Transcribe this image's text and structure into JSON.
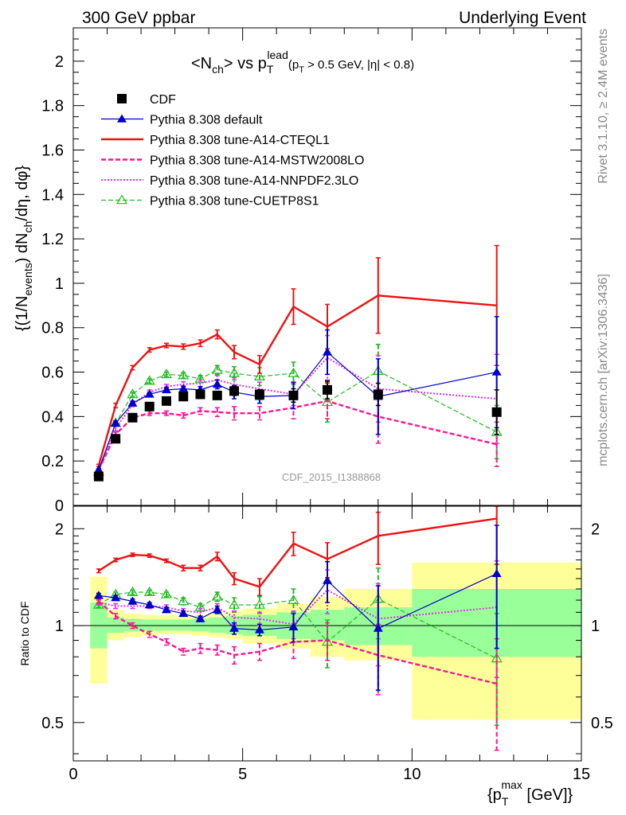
{
  "header": {
    "left": "300 GeV ppbar",
    "right": "Underlying Event"
  },
  "side_labels": {
    "rivet": "Rivet 3.1.10, ≥ 2.4M events",
    "mcplots": "mcplots.cern.ch [arXiv:1306.3436]"
  },
  "colors": {
    "cdf": "#000000",
    "default": "#0000cc",
    "cteql1": "#ee1111",
    "mstw": "#ff1493",
    "nnpdf": "#e62ee6",
    "cuetp8s1": "#22bb22",
    "band_inner": "#99ff99",
    "band_outer": "#ffff99"
  },
  "chart_data": [
    {
      "type": "line",
      "panel": "main",
      "title": "<N_ch> vs p_T^lead (p_T > 0.5 GeV, |η| < 0.8)",
      "ylabel": "{(1/N_events) dN_ch/dη, dφ}",
      "xlim": [
        0,
        15
      ],
      "ylim": [
        0,
        2.15
      ],
      "yticks": [
        0,
        0.2,
        0.4,
        0.6,
        0.8,
        1,
        1.2,
        1.4,
        1.6,
        1.8,
        2
      ],
      "watermark": "CDF_2015_I1388868",
      "legend_position": "top-left",
      "x": [
        0.75,
        1.25,
        1.75,
        2.25,
        2.75,
        3.25,
        3.75,
        4.25,
        4.75,
        5.5,
        6.5,
        7.5,
        9.0,
        12.5
      ],
      "series": [
        {
          "key": "cdf",
          "name": "CDF",
          "style": "marker-square",
          "values": [
            0.13,
            0.3,
            0.395,
            0.445,
            0.47,
            0.49,
            0.5,
            0.495,
            0.515,
            0.5,
            0.495,
            0.52,
            0.5,
            0.42
          ],
          "errors": [
            0.01,
            0.01,
            0.01,
            0.01,
            0.01,
            0.01,
            0.01,
            0.015,
            0.02,
            0.02,
            0.03,
            0.04,
            0.05,
            0.1
          ]
        },
        {
          "key": "default",
          "name": "Pythia 8.308 default",
          "style": "solid-triangle",
          "values": [
            0.16,
            0.37,
            0.46,
            0.5,
            0.52,
            0.525,
            0.52,
            0.545,
            0.51,
            0.49,
            0.495,
            0.69,
            0.49,
            0.6
          ],
          "errors": [
            0.005,
            0.01,
            0.01,
            0.01,
            0.01,
            0.012,
            0.015,
            0.02,
            0.03,
            0.03,
            0.06,
            0.1,
            0.17,
            0.25
          ]
        },
        {
          "key": "cteql1",
          "name": "Pythia 8.308 tune-A14-CTEQL1",
          "style": "solid",
          "values": [
            0.18,
            0.45,
            0.62,
            0.7,
            0.72,
            0.715,
            0.73,
            0.77,
            0.69,
            0.635,
            0.895,
            0.805,
            0.945,
            0.9
          ],
          "errors": [
            0.005,
            0.01,
            0.01,
            0.01,
            0.01,
            0.012,
            0.015,
            0.02,
            0.03,
            0.04,
            0.08,
            0.1,
            0.17,
            0.27
          ]
        },
        {
          "key": "mstw",
          "name": "Pythia 8.308 tune-A14-MSTW2008LO",
          "style": "dashed",
          "values": [
            0.16,
            0.32,
            0.395,
            0.415,
            0.415,
            0.405,
            0.425,
            0.42,
            0.415,
            0.415,
            0.44,
            0.47,
            0.4,
            0.275
          ],
          "errors": [
            0.005,
            0.01,
            0.01,
            0.01,
            0.01,
            0.012,
            0.015,
            0.02,
            0.03,
            0.03,
            0.05,
            0.08,
            0.12,
            0.1
          ]
        },
        {
          "key": "nnpdf",
          "name": "Pythia 8.308 tune-A14-NNPDF2.3LO",
          "style": "dotted",
          "values": [
            0.155,
            0.345,
            0.455,
            0.51,
            0.535,
            0.545,
            0.55,
            0.565,
            0.545,
            0.525,
            0.5,
            0.665,
            0.525,
            0.48
          ],
          "errors": [
            0.005,
            0.01,
            0.01,
            0.01,
            0.01,
            0.012,
            0.015,
            0.02,
            0.03,
            0.03,
            0.05,
            0.1,
            0.15,
            0.2
          ]
        },
        {
          "key": "cuetp8s1",
          "name": "Pythia 8.308 tune-CUETP8S1",
          "style": "dashed-triangle-open",
          "values": [
            0.15,
            0.37,
            0.5,
            0.56,
            0.59,
            0.585,
            0.57,
            0.61,
            0.595,
            0.58,
            0.595,
            0.465,
            0.605,
            0.33
          ],
          "errors": [
            0.005,
            0.01,
            0.01,
            0.01,
            0.01,
            0.012,
            0.015,
            0.02,
            0.03,
            0.04,
            0.05,
            0.09,
            0.12,
            0.12
          ]
        }
      ]
    },
    {
      "type": "line",
      "panel": "ratio",
      "ylabel": "Ratio to CDF",
      "xlabel": "{p_T^max [GeV]}",
      "xlim": [
        0,
        15
      ],
      "ylim": [
        0.38,
        2.35
      ],
      "log_y": true,
      "yticks": [
        0.5,
        1,
        2
      ],
      "xticks": [
        0,
        5,
        10,
        15
      ],
      "reference": 1,
      "bands": [
        {
          "x0": 0.5,
          "x1": 1.0,
          "inner": [
            0.85,
            1.18
          ],
          "outer": [
            0.66,
            1.42
          ]
        },
        {
          "x0": 1.0,
          "x1": 1.5,
          "inner": [
            0.95,
            1.06
          ],
          "outer": [
            0.9,
            1.12
          ]
        },
        {
          "x0": 1.5,
          "x1": 2.0,
          "inner": [
            0.96,
            1.05
          ],
          "outer": [
            0.92,
            1.09
          ]
        },
        {
          "x0": 2.0,
          "x1": 2.5,
          "inner": [
            0.965,
            1.045
          ],
          "outer": [
            0.93,
            1.08
          ]
        },
        {
          "x0": 2.5,
          "x1": 3.0,
          "inner": [
            0.965,
            1.045
          ],
          "outer": [
            0.94,
            1.08
          ]
        },
        {
          "x0": 3.0,
          "x1": 3.5,
          "inner": [
            0.965,
            1.045
          ],
          "outer": [
            0.94,
            1.08
          ]
        },
        {
          "x0": 3.5,
          "x1": 4.0,
          "inner": [
            0.96,
            1.05
          ],
          "outer": [
            0.93,
            1.08
          ]
        },
        {
          "x0": 4.0,
          "x1": 4.5,
          "inner": [
            0.95,
            1.06
          ],
          "outer": [
            0.92,
            1.09
          ]
        },
        {
          "x0": 4.5,
          "x1": 5.0,
          "inner": [
            0.94,
            1.07
          ],
          "outer": [
            0.91,
            1.11
          ]
        },
        {
          "x0": 5.0,
          "x1": 6.0,
          "inner": [
            0.93,
            1.08
          ],
          "outer": [
            0.88,
            1.13
          ]
        },
        {
          "x0": 6.0,
          "x1": 7.0,
          "inner": [
            0.91,
            1.1
          ],
          "outer": [
            0.85,
            1.17
          ]
        },
        {
          "x0": 7.0,
          "x1": 8.0,
          "inner": [
            0.9,
            1.12
          ],
          "outer": [
            0.8,
            1.23
          ]
        },
        {
          "x0": 8.0,
          "x1": 10.0,
          "inner": [
            0.87,
            1.14
          ],
          "outer": [
            0.78,
            1.3
          ]
        },
        {
          "x0": 10.0,
          "x1": 15.0,
          "inner": [
            0.8,
            1.3
          ],
          "outer": [
            0.51,
            1.57
          ]
        }
      ],
      "x": [
        0.75,
        1.25,
        1.75,
        2.25,
        2.75,
        3.25,
        3.75,
        4.25,
        4.75,
        5.5,
        6.5,
        7.5,
        9.0,
        12.5
      ],
      "series": [
        {
          "key": "default",
          "style": "solid-triangle",
          "values": [
            1.24,
            1.22,
            1.19,
            1.16,
            1.12,
            1.09,
            1.05,
            1.12,
            0.98,
            0.97,
            0.99,
            1.38,
            0.98,
            1.45
          ],
          "errors": [
            0.02,
            0.02,
            0.02,
            0.02,
            0.02,
            0.02,
            0.02,
            0.03,
            0.04,
            0.04,
            0.1,
            0.2,
            0.35,
            0.6
          ]
        },
        {
          "key": "cteql1",
          "style": "solid",
          "values": [
            1.48,
            1.6,
            1.66,
            1.65,
            1.59,
            1.51,
            1.51,
            1.64,
            1.4,
            1.32,
            1.8,
            1.61,
            1.9,
            2.15
          ],
          "errors": [
            0.02,
            0.02,
            0.02,
            0.02,
            0.02,
            0.03,
            0.03,
            0.05,
            0.06,
            0.08,
            0.15,
            0.2,
            0.35,
            0.6
          ]
        },
        {
          "key": "mstw",
          "style": "dashed",
          "values": [
            1.19,
            1.07,
            1.0,
            0.94,
            0.89,
            0.83,
            0.85,
            0.84,
            0.81,
            0.83,
            0.89,
            0.9,
            0.81,
            0.66
          ],
          "errors": [
            0.02,
            0.02,
            0.02,
            0.02,
            0.02,
            0.02,
            0.03,
            0.03,
            0.05,
            0.05,
            0.1,
            0.12,
            0.2,
            0.25
          ]
        },
        {
          "key": "nnpdf",
          "style": "dotted",
          "values": [
            1.18,
            1.15,
            1.15,
            1.15,
            1.14,
            1.11,
            1.1,
            1.14,
            1.06,
            1.05,
            1.01,
            1.29,
            1.05,
            1.14
          ],
          "errors": [
            0.02,
            0.02,
            0.02,
            0.02,
            0.02,
            0.02,
            0.03,
            0.03,
            0.05,
            0.05,
            0.1,
            0.2,
            0.3,
            0.45
          ]
        },
        {
          "key": "cuetp8s1",
          "style": "dashed-triangle-open",
          "values": [
            1.16,
            1.25,
            1.27,
            1.27,
            1.25,
            1.19,
            1.14,
            1.23,
            1.16,
            1.16,
            1.2,
            0.89,
            1.21,
            0.79
          ],
          "errors": [
            0.02,
            0.02,
            0.02,
            0.02,
            0.02,
            0.03,
            0.03,
            0.04,
            0.06,
            0.07,
            0.1,
            0.15,
            0.3,
            0.3
          ]
        }
      ]
    }
  ]
}
